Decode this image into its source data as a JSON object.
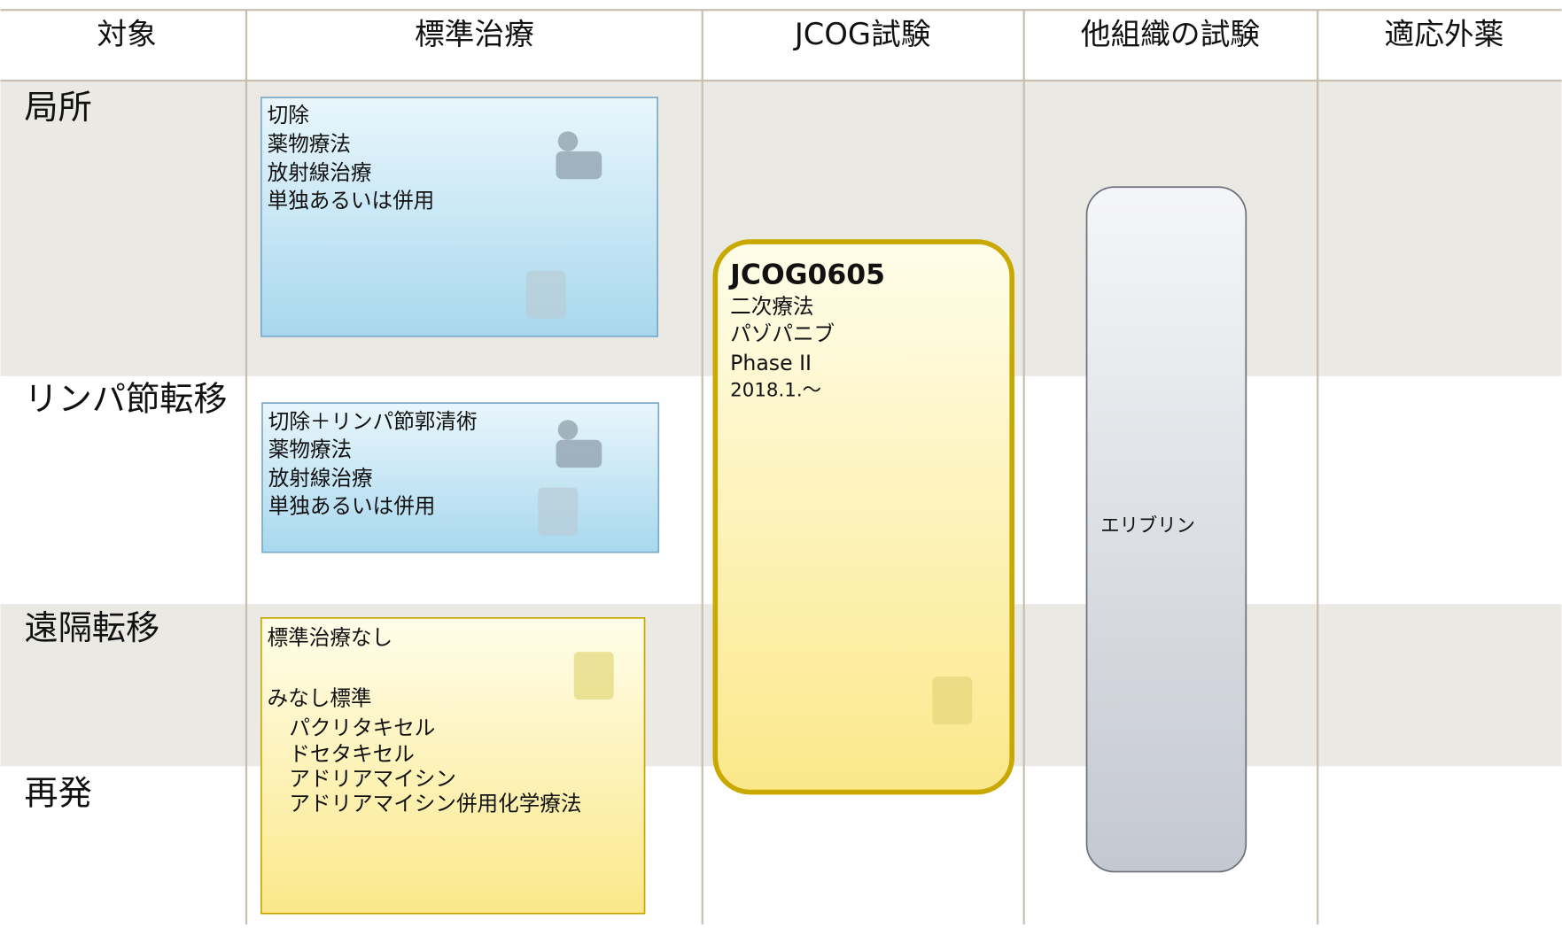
{
  "header": {
    "columns": [
      "対象",
      "標準治療",
      "JCOG試験",
      "他組織の試験",
      "適応外薬"
    ]
  },
  "rows": [
    "局所",
    "リンパ節転移",
    "遠隔転移",
    "再発"
  ],
  "standard_local": {
    "lines": [
      "切除",
      "薬物療法",
      "放射線治療",
      "単独あるいは併用"
    ]
  },
  "standard_lymph": {
    "lines": [
      "切除＋リンパ節郭清術",
      "薬物療法",
      "放射線治療",
      "単独あるいは併用"
    ]
  },
  "standard_distant": {
    "title": "標準治療なし",
    "subtitle": "みなし標準",
    "items": [
      "パクリタキセル",
      "ドセタキセル",
      "アドリアマイシン",
      "アドリアマイシン併用化学療法"
    ]
  },
  "jcog_trial": {
    "title": "JCOG0605",
    "lines": [
      "二次療法",
      "パゾパニブ",
      "Phase II",
      "2018.1.～"
    ]
  },
  "other_trial": {
    "label": "エリブリン"
  }
}
